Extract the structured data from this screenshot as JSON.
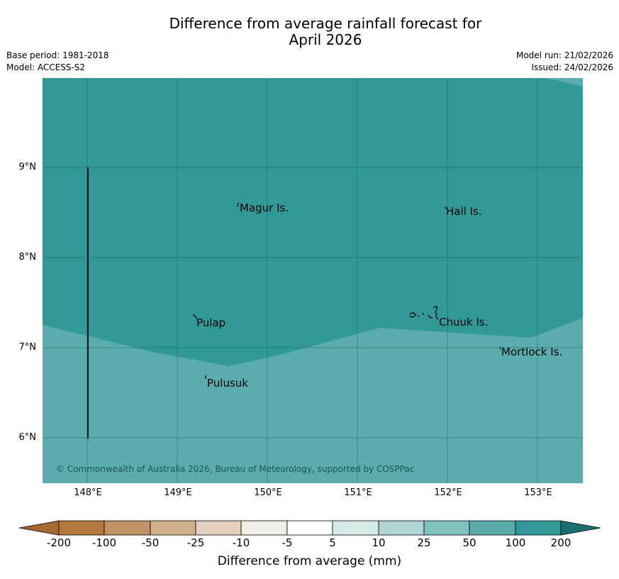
{
  "header": {
    "title_line1": "Difference from average rainfall forecast for",
    "title_line2": "April 2026",
    "base_period": "Base period: 1981-2018",
    "model": "Model: ACCESS-S2",
    "model_run": "Model run: 21/02/2026",
    "issued": "Issued: 24/02/2026"
  },
  "map": {
    "lat_labels": [
      "9°N",
      "8°N",
      "7°N",
      "6°N"
    ],
    "lon_labels": [
      "148°E",
      "149°E",
      "150°E",
      "151°E",
      "152°E",
      "153°E"
    ],
    "places": [
      {
        "name": "Magur Is."
      },
      {
        "name": "Hall Is."
      },
      {
        "name": "Pulap"
      },
      {
        "name": "Chuuk Is."
      },
      {
        "name": "Mortlock Is."
      },
      {
        "name": "Pulusuk"
      }
    ],
    "copyright": "© Commonwealth of Australia 2026, Bureau of Meteorology, supported by COSPPac",
    "colors": {
      "band_100_200": "#319a97",
      "band_50_100": "#5aacad",
      "grid": "#1f5f5c"
    }
  },
  "colorbar": {
    "ticks": [
      "-200",
      "-100",
      "-50",
      "-25",
      "-10",
      "-5",
      "5",
      "10",
      "25",
      "50",
      "100",
      "200"
    ],
    "colors": [
      "#a6682f",
      "#b3783e",
      "#c09268",
      "#d2b08e",
      "#e3d1bf",
      "#f0ede6",
      "#ffffff",
      "#d6ebe9",
      "#add6d4",
      "#80c0bd",
      "#59aba9",
      "#319a97",
      "#1c6f6c"
    ],
    "label": "Difference from average (mm)"
  }
}
